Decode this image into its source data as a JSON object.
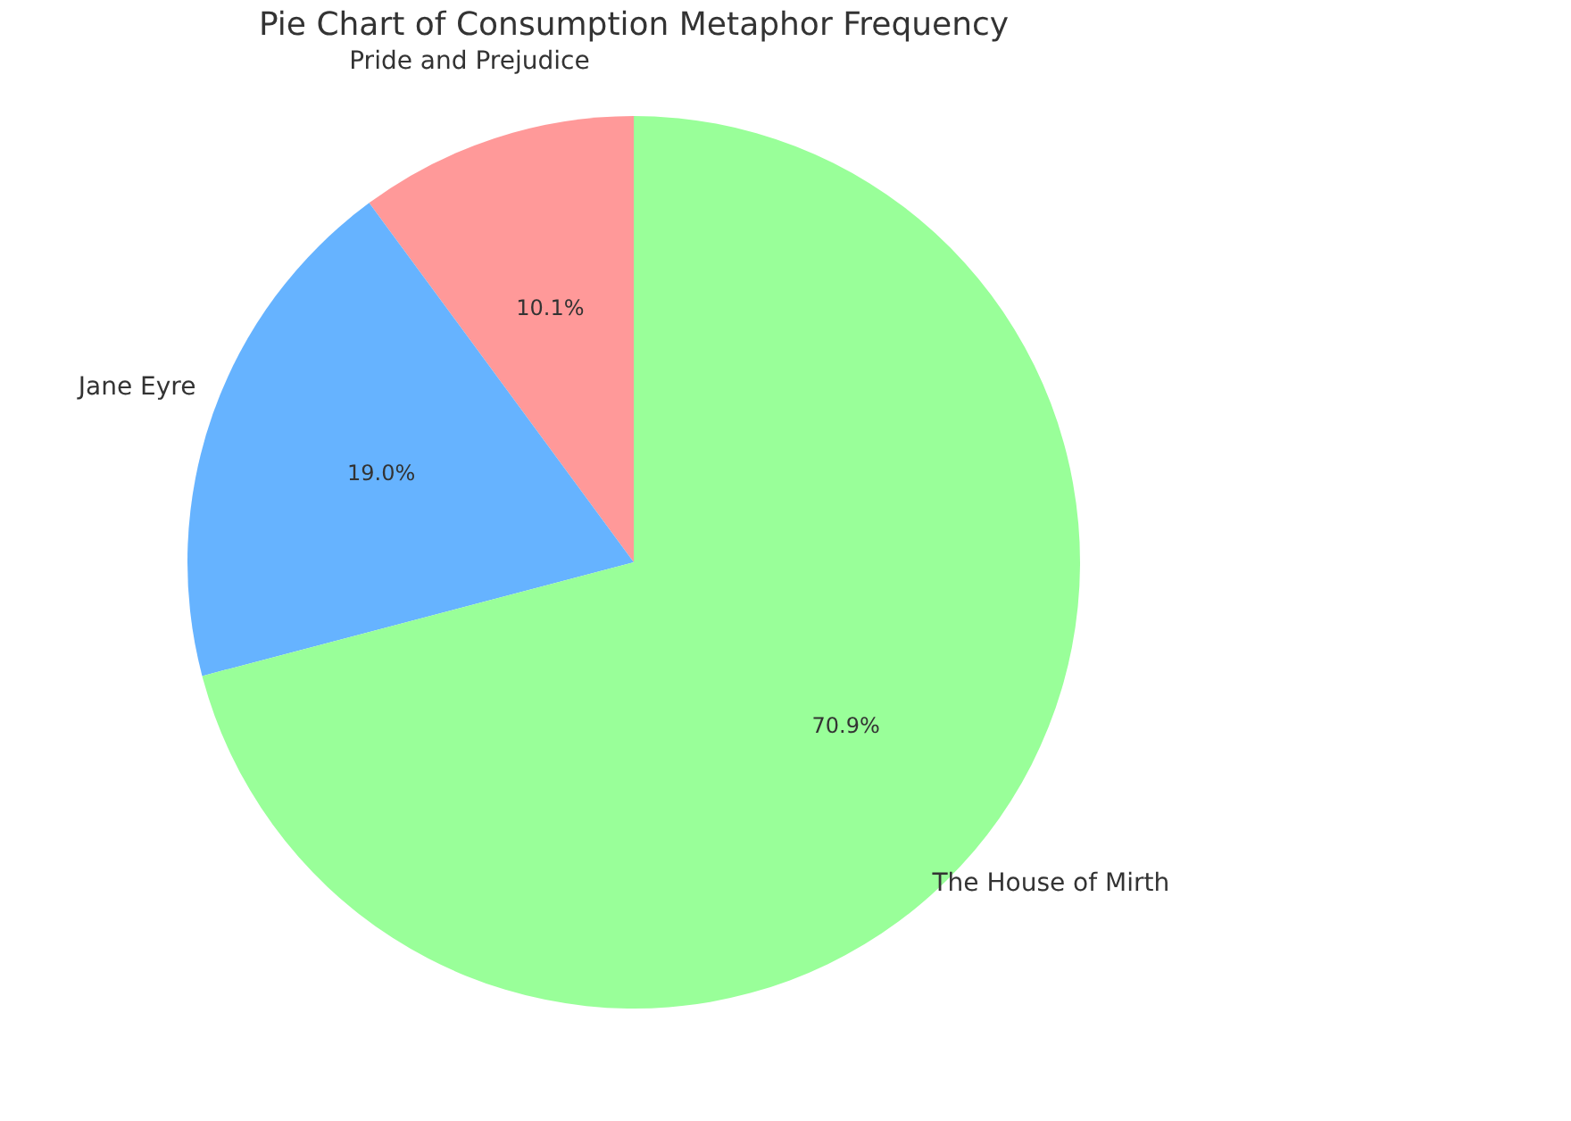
{
  "chart_data": {
    "type": "pie",
    "title": "Pie Chart of Consumption Metaphor Frequency",
    "categories": [
      "Pride and Prejudice",
      "Jane Eyre",
      "The House of Mirth"
    ],
    "values": [
      10.1,
      19.0,
      70.9
    ],
    "colors": [
      "#ff9999",
      "#66b3ff",
      "#99ff99"
    ],
    "value_labels": [
      "10.1%",
      "19.0%",
      "70.9%"
    ],
    "legend": false
  }
}
